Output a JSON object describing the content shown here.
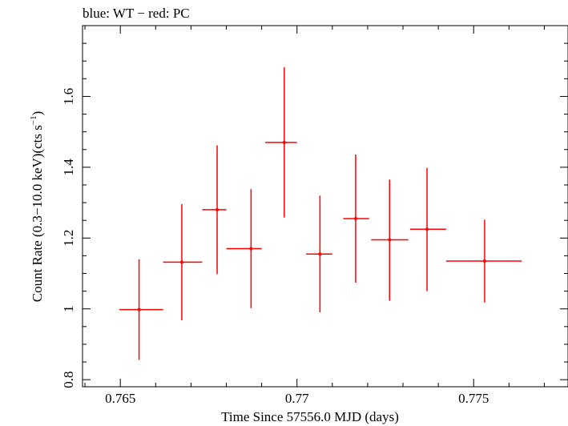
{
  "chart_data": {
    "type": "scatter",
    "title": "blue: WT − red: PC",
    "xlabel": "Time Since 57556.0 MJD (days)",
    "ylabel_main": "Count Rate (0.3−10.0 keV)(cts s",
    "ylabel_sup": "−1",
    "ylabel_close": ")",
    "xlim": [
      0.76393,
      0.77767
    ],
    "ylim": [
      0.78,
      1.8
    ],
    "xticks": [
      {
        "value": 0.765,
        "label": "0.765"
      },
      {
        "value": 0.77,
        "label": "0.77"
      },
      {
        "value": 0.775,
        "label": "0.775"
      }
    ],
    "yticks": [
      {
        "value": 0.8,
        "label": "0.8"
      },
      {
        "value": 1.0,
        "label": "1"
      },
      {
        "value": 1.2,
        "label": "1.2"
      },
      {
        "value": 1.4,
        "label": "1.4"
      },
      {
        "value": 1.6,
        "label": "1.6"
      }
    ],
    "x_minor_step": 0.001,
    "y_minor_step": 0.05,
    "grid": false,
    "series": [
      {
        "name": "PC",
        "color": "#ff0000",
        "points": [
          {
            "x": 0.76553,
            "xlo": 0.76497,
            "xhi": 0.76621,
            "y": 0.998,
            "ylo": 0.856,
            "yhi": 1.14
          },
          {
            "x": 0.76674,
            "xlo": 0.76621,
            "xhi": 0.76732,
            "y": 1.132,
            "ylo": 0.968,
            "yhi": 1.296
          },
          {
            "x": 0.76774,
            "xlo": 0.76732,
            "xhi": 0.768,
            "y": 1.28,
            "ylo": 1.098,
            "yhi": 1.462
          },
          {
            "x": 0.7687,
            "xlo": 0.768,
            "xhi": 0.769,
            "y": 1.17,
            "ylo": 1.002,
            "yhi": 1.338
          },
          {
            "x": 0.76964,
            "xlo": 0.7691,
            "xhi": 0.77,
            "y": 1.47,
            "ylo": 1.258,
            "yhi": 1.682
          },
          {
            "x": 0.77065,
            "xlo": 0.77026,
            "xhi": 0.771,
            "y": 1.155,
            "ylo": 0.99,
            "yhi": 1.32
          },
          {
            "x": 0.77166,
            "xlo": 0.77131,
            "xhi": 0.77204,
            "y": 1.255,
            "ylo": 1.074,
            "yhi": 1.436
          },
          {
            "x": 0.77262,
            "xlo": 0.7721,
            "xhi": 0.77315,
            "y": 1.195,
            "ylo": 1.023,
            "yhi": 1.365
          },
          {
            "x": 0.77368,
            "xlo": 0.7732,
            "xhi": 0.77422,
            "y": 1.225,
            "ylo": 1.05,
            "yhi": 1.398
          },
          {
            "x": 0.77531,
            "xlo": 0.77422,
            "xhi": 0.77636,
            "y": 1.135,
            "ylo": 1.018,
            "yhi": 1.252
          }
        ]
      }
    ]
  }
}
